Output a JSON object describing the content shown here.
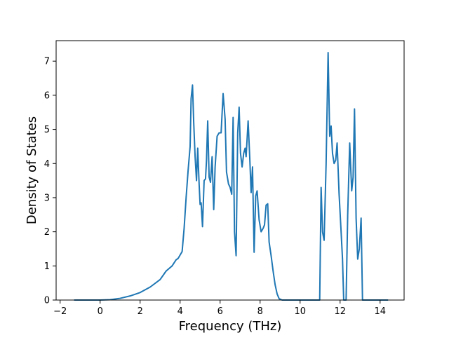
{
  "chart_data": {
    "type": "line",
    "title": "",
    "xlabel": "Frequency (THz)",
    "ylabel": "Density of States",
    "xlim": [
      -2.2,
      15.2
    ],
    "ylim": [
      0,
      7.6
    ],
    "x_ticks": [
      -2,
      0,
      2,
      4,
      6,
      8,
      10,
      12,
      14
    ],
    "y_ticks": [
      0,
      1,
      2,
      3,
      4,
      5,
      6,
      7
    ],
    "grid": false,
    "legend": "none",
    "series": [
      {
        "color": "#1f77b4",
        "points": [
          [
            -1.3,
            0
          ],
          [
            0,
            0
          ],
          [
            0.5,
            0.01
          ],
          [
            1.0,
            0.05
          ],
          [
            1.5,
            0.12
          ],
          [
            2.0,
            0.22
          ],
          [
            2.5,
            0.38
          ],
          [
            3.0,
            0.6
          ],
          [
            3.3,
            0.85
          ],
          [
            3.6,
            1.0
          ],
          [
            3.8,
            1.18
          ],
          [
            3.9,
            1.22
          ],
          [
            4.1,
            1.42
          ],
          [
            4.2,
            2.1
          ],
          [
            4.3,
            3.0
          ],
          [
            4.4,
            3.8
          ],
          [
            4.5,
            4.5
          ],
          [
            4.55,
            5.9
          ],
          [
            4.62,
            6.3
          ],
          [
            4.68,
            5.2
          ],
          [
            4.75,
            4.2
          ],
          [
            4.82,
            3.5
          ],
          [
            4.88,
            4.45
          ],
          [
            4.95,
            3.4
          ],
          [
            5.0,
            2.8
          ],
          [
            5.05,
            2.85
          ],
          [
            5.12,
            2.15
          ],
          [
            5.2,
            3.5
          ],
          [
            5.27,
            3.55
          ],
          [
            5.32,
            4.1
          ],
          [
            5.38,
            5.25
          ],
          [
            5.45,
            3.6
          ],
          [
            5.52,
            3.45
          ],
          [
            5.6,
            4.2
          ],
          [
            5.68,
            2.65
          ],
          [
            5.75,
            3.9
          ],
          [
            5.85,
            4.8
          ],
          [
            5.95,
            4.9
          ],
          [
            6.05,
            4.9
          ],
          [
            6.15,
            6.05
          ],
          [
            6.25,
            5.3
          ],
          [
            6.32,
            3.75
          ],
          [
            6.42,
            3.4
          ],
          [
            6.5,
            3.3
          ],
          [
            6.58,
            3.1
          ],
          [
            6.65,
            5.35
          ],
          [
            6.72,
            2.0
          ],
          [
            6.8,
            1.3
          ],
          [
            6.88,
            4.9
          ],
          [
            6.95,
            5.65
          ],
          [
            7.02,
            4.3
          ],
          [
            7.1,
            3.9
          ],
          [
            7.18,
            4.3
          ],
          [
            7.25,
            4.45
          ],
          [
            7.3,
            4.2
          ],
          [
            7.4,
            5.25
          ],
          [
            7.48,
            4.2
          ],
          [
            7.55,
            3.15
          ],
          [
            7.62,
            3.9
          ],
          [
            7.7,
            1.4
          ],
          [
            7.78,
            3.05
          ],
          [
            7.85,
            3.2
          ],
          [
            7.95,
            2.35
          ],
          [
            8.05,
            2.0
          ],
          [
            8.15,
            2.1
          ],
          [
            8.22,
            2.2
          ],
          [
            8.3,
            2.78
          ],
          [
            8.38,
            2.82
          ],
          [
            8.45,
            1.7
          ],
          [
            8.55,
            1.3
          ],
          [
            8.65,
            0.85
          ],
          [
            8.75,
            0.45
          ],
          [
            8.85,
            0.18
          ],
          [
            8.95,
            0.04
          ],
          [
            9.1,
            0
          ],
          [
            10.98,
            0
          ],
          [
            11.05,
            3.3
          ],
          [
            11.12,
            2.0
          ],
          [
            11.2,
            1.75
          ],
          [
            11.3,
            4.0
          ],
          [
            11.4,
            7.25
          ],
          [
            11.48,
            4.8
          ],
          [
            11.55,
            5.1
          ],
          [
            11.62,
            4.3
          ],
          [
            11.7,
            4.0
          ],
          [
            11.78,
            4.1
          ],
          [
            11.85,
            4.6
          ],
          [
            11.95,
            3.1
          ],
          [
            12.05,
            2.0
          ],
          [
            12.12,
            1.2
          ],
          [
            12.18,
            0
          ],
          [
            12.3,
            0
          ],
          [
            12.38,
            2.5
          ],
          [
            12.48,
            4.6
          ],
          [
            12.58,
            3.2
          ],
          [
            12.65,
            3.6
          ],
          [
            12.72,
            5.6
          ],
          [
            12.8,
            2.4
          ],
          [
            12.88,
            1.2
          ],
          [
            12.96,
            1.5
          ],
          [
            13.05,
            2.4
          ],
          [
            13.12,
            0
          ],
          [
            14.4,
            0
          ]
        ]
      }
    ]
  }
}
